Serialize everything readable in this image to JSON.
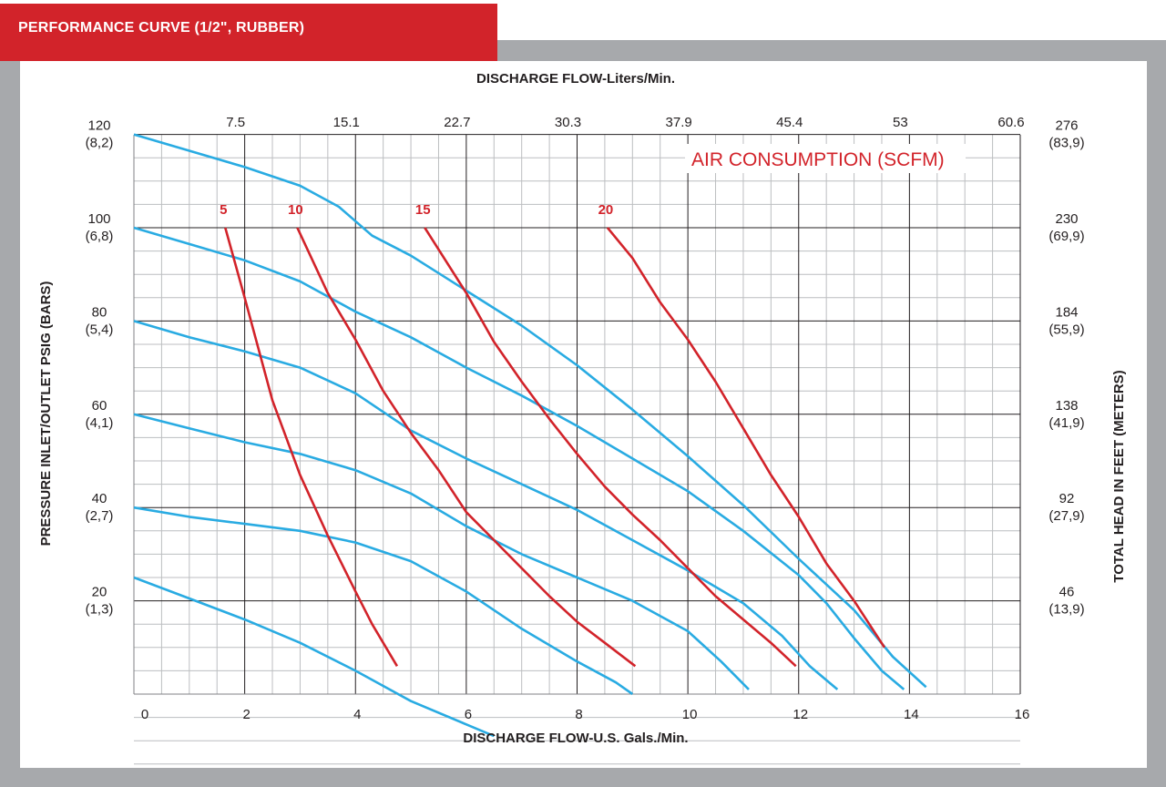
{
  "header": {
    "title": "PERFORMANCE CURVE (1/2\", RUBBER)"
  },
  "colors": {
    "accent": "#d2232a",
    "curve": "#29abe2",
    "grid_major": "#231f20",
    "grid_minor": "#bcbec0",
    "frame": "#a7a9ac"
  },
  "chart_data": {
    "type": "line",
    "top_axis": {
      "label": "DISCHARGE FLOW-Liters/Min.",
      "ticks": [
        {
          "x": 2,
          "label": "7.5"
        },
        {
          "x": 4,
          "label": "15.1"
        },
        {
          "x": 6,
          "label": "22.7"
        },
        {
          "x": 8,
          "label": "30.3"
        },
        {
          "x": 10,
          "label": "37.9"
        },
        {
          "x": 12,
          "label": "45.4"
        },
        {
          "x": 14,
          "label": "53"
        },
        {
          "x": 16,
          "label": "60.6"
        }
      ]
    },
    "xlabel": "DISCHARGE FLOW-U.S. Gals./Min.",
    "xlim": [
      0,
      16
    ],
    "x_ticks": [
      0,
      2,
      4,
      6,
      8,
      10,
      12,
      14,
      16
    ],
    "ylabel": "PRESSURE INLET/OUTLET PSIG (BARS)",
    "ylim": [
      0,
      120
    ],
    "y_ticks": [
      {
        "y": 120,
        "psig": "120",
        "bar": "(8,2)"
      },
      {
        "y": 100,
        "psig": "100",
        "bar": "(6,8)"
      },
      {
        "y": 80,
        "psig": "80",
        "bar": "(5,4)"
      },
      {
        "y": 60,
        "psig": "60",
        "bar": "(4,1)"
      },
      {
        "y": 40,
        "psig": "40",
        "bar": "(2,7)"
      },
      {
        "y": 20,
        "psig": "20",
        "bar": "(1,3)"
      }
    ],
    "right_label": "TOTAL HEAD IN FEET (METERS)",
    "right_ticks": [
      {
        "y": 120,
        "feet": "276",
        "meters": "(83,9)"
      },
      {
        "y": 100,
        "feet": "230",
        "meters": "(69,9)"
      },
      {
        "y": 80,
        "feet": "184",
        "meters": "(55,9)"
      },
      {
        "y": 60,
        "feet": "138",
        "meters": "(41,9)"
      },
      {
        "y": 40,
        "feet": "92",
        "meters": "(27,9)"
      },
      {
        "y": 20,
        "feet": "46",
        "meters": "(13,9)"
      }
    ],
    "grid": true,
    "annotation": "AIR CONSUMPTION (SCFM)",
    "performance_curves": [
      {
        "points": [
          [
            0,
            120
          ],
          [
            1,
            116.5
          ],
          [
            2,
            113
          ],
          [
            3,
            109
          ],
          [
            3.7,
            104.5
          ],
          [
            4.3,
            98.3
          ],
          [
            5,
            94
          ],
          [
            6,
            86.5
          ],
          [
            7,
            79
          ],
          [
            8,
            70.5
          ],
          [
            9,
            61
          ],
          [
            10,
            51
          ],
          [
            11,
            40.5
          ],
          [
            12,
            29
          ],
          [
            13,
            18
          ],
          [
            13.7,
            8
          ],
          [
            14.3,
            1.5
          ]
        ]
      },
      {
        "points": [
          [
            0,
            100
          ],
          [
            1,
            96.5
          ],
          [
            2,
            93
          ],
          [
            3,
            88.5
          ],
          [
            4,
            82
          ],
          [
            5,
            76.5
          ],
          [
            6,
            70
          ],
          [
            7,
            64
          ],
          [
            8,
            57.5
          ],
          [
            9,
            50.5
          ],
          [
            10,
            43.5
          ],
          [
            11,
            35
          ],
          [
            12,
            25.5
          ],
          [
            12.5,
            19.5
          ],
          [
            13,
            12
          ],
          [
            13.5,
            5
          ],
          [
            13.9,
            1
          ]
        ]
      },
      {
        "points": [
          [
            0,
            80
          ],
          [
            1,
            76.5
          ],
          [
            2,
            73.5
          ],
          [
            3,
            70
          ],
          [
            4,
            64.5
          ],
          [
            5,
            56.5
          ],
          [
            6,
            50.5
          ],
          [
            7,
            45
          ],
          [
            8,
            39.5
          ],
          [
            9,
            33
          ],
          [
            10,
            26.5
          ],
          [
            11,
            19.5
          ],
          [
            11.7,
            12.5
          ],
          [
            12.2,
            6
          ],
          [
            12.7,
            1
          ]
        ]
      },
      {
        "points": [
          [
            0,
            60
          ],
          [
            1,
            57
          ],
          [
            2,
            54
          ],
          [
            3,
            51.5
          ],
          [
            4,
            48
          ],
          [
            5,
            43
          ],
          [
            6,
            36
          ],
          [
            7,
            30
          ],
          [
            8,
            25
          ],
          [
            9,
            20
          ],
          [
            10,
            13.5
          ],
          [
            10.6,
            7
          ],
          [
            11.1,
            1
          ]
        ]
      },
      {
        "points": [
          [
            0,
            40
          ],
          [
            1,
            38
          ],
          [
            2,
            36.5
          ],
          [
            3,
            35
          ],
          [
            4,
            32.5
          ],
          [
            5,
            28.5
          ],
          [
            6,
            22
          ],
          [
            7,
            14
          ],
          [
            8,
            7
          ],
          [
            8.7,
            2.5
          ],
          [
            9,
            0
          ]
        ]
      },
      {
        "points": [
          [
            0,
            25
          ],
          [
            1,
            20.5
          ],
          [
            2,
            16
          ],
          [
            3,
            11
          ],
          [
            4,
            5
          ],
          [
            5,
            -1.5
          ],
          [
            6,
            -6.5
          ],
          [
            6.5,
            -9
          ]
        ]
      }
    ],
    "air_curves": [
      {
        "label": "5",
        "points": [
          [
            1.65,
            100
          ],
          [
            2,
            85
          ],
          [
            2.5,
            63
          ],
          [
            3,
            47
          ],
          [
            3.5,
            34
          ],
          [
            4,
            22
          ],
          [
            4.3,
            15
          ],
          [
            4.75,
            6
          ]
        ]
      },
      {
        "label": "10",
        "points": [
          [
            2.95,
            100
          ],
          [
            3.5,
            86
          ],
          [
            4,
            76
          ],
          [
            4.5,
            65
          ],
          [
            5,
            56
          ],
          [
            5.5,
            48
          ],
          [
            6,
            39
          ],
          [
            6.5,
            33
          ],
          [
            7,
            27
          ],
          [
            7.5,
            21
          ],
          [
            8,
            15.5
          ],
          [
            8.5,
            11
          ],
          [
            9.05,
            6
          ]
        ]
      },
      {
        "label": "15",
        "points": [
          [
            5.25,
            100
          ],
          [
            6,
            86
          ],
          [
            6.5,
            75.5
          ],
          [
            7,
            67
          ],
          [
            7.5,
            59
          ],
          [
            8,
            51.5
          ],
          [
            8.5,
            44.5
          ],
          [
            9,
            38.5
          ],
          [
            9.5,
            33
          ],
          [
            10,
            27
          ],
          [
            10.5,
            21
          ],
          [
            11,
            16
          ],
          [
            11.5,
            11
          ],
          [
            11.95,
            6
          ]
        ]
      },
      {
        "label": "20",
        "points": [
          [
            8.55,
            100
          ],
          [
            9,
            93.5
          ],
          [
            9.5,
            84
          ],
          [
            10,
            76
          ],
          [
            10.5,
            67
          ],
          [
            11,
            57
          ],
          [
            11.5,
            47
          ],
          [
            12,
            38
          ],
          [
            12.5,
            28
          ],
          [
            13,
            20
          ],
          [
            13.55,
            10
          ]
        ]
      }
    ]
  }
}
